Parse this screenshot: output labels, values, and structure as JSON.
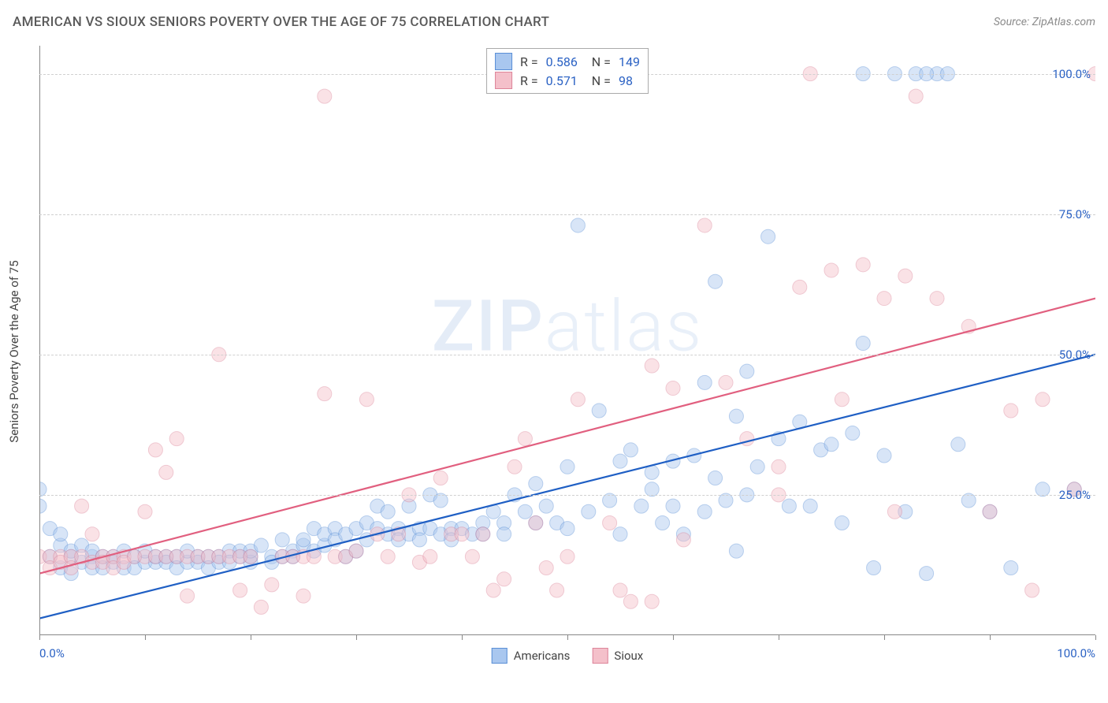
{
  "title": "AMERICAN VS SIOUX SENIORS POVERTY OVER THE AGE OF 75 CORRELATION CHART",
  "source": "Source: ZipAtlas.com",
  "y_axis_label": "Seniors Poverty Over the Age of 75",
  "watermark_a": "ZIP",
  "watermark_b": "atlas",
  "chart": {
    "type": "scatter",
    "background_color": "#ffffff",
    "grid_color": "#d0d0d0",
    "axis_color": "#888888",
    "tick_label_color": "#2b62c4",
    "xlim": [
      0,
      100
    ],
    "ylim": [
      0,
      105
    ],
    "x_ticks": [
      0,
      10,
      20,
      30,
      40,
      50,
      60,
      70,
      80,
      90,
      100
    ],
    "x_tick_labels": {
      "0": "0.0%",
      "100": "100.0%"
    },
    "y_ticks": [
      25,
      50,
      75,
      100
    ],
    "y_tick_labels": {
      "25": "25.0%",
      "50": "50.0%",
      "75": "75.0%",
      "100": "100.0%"
    },
    "marker_radius": 9,
    "marker_opacity": 0.45,
    "line_width": 2.2,
    "series": [
      {
        "name": "Americans",
        "fill": "#a9c7ef",
        "stroke": "#5a8fd6",
        "line_color": "#1f5fc4",
        "R": "0.586",
        "N": "149",
        "trend": {
          "x1": 0,
          "y1": 3,
          "x2": 100,
          "y2": 50
        },
        "points": [
          [
            0,
            26
          ],
          [
            0,
            23
          ],
          [
            1,
            19
          ],
          [
            1,
            14
          ],
          [
            2,
            16
          ],
          [
            2,
            18
          ],
          [
            2,
            12
          ],
          [
            3,
            14
          ],
          [
            3,
            15
          ],
          [
            3,
            11
          ],
          [
            4,
            16
          ],
          [
            4,
            13
          ],
          [
            5,
            14
          ],
          [
            5,
            12
          ],
          [
            5,
            15
          ],
          [
            6,
            14
          ],
          [
            6,
            12
          ],
          [
            7,
            14
          ],
          [
            7,
            13
          ],
          [
            8,
            12
          ],
          [
            8,
            15
          ],
          [
            9,
            14
          ],
          [
            9,
            12
          ],
          [
            10,
            13
          ],
          [
            10,
            15
          ],
          [
            11,
            13
          ],
          [
            11,
            14
          ],
          [
            12,
            14
          ],
          [
            12,
            13
          ],
          [
            13,
            14
          ],
          [
            13,
            12
          ],
          [
            14,
            13
          ],
          [
            14,
            15
          ],
          [
            15,
            14
          ],
          [
            15,
            13
          ],
          [
            16,
            14
          ],
          [
            16,
            12
          ],
          [
            17,
            14
          ],
          [
            17,
            13
          ],
          [
            18,
            15
          ],
          [
            18,
            13
          ],
          [
            19,
            14
          ],
          [
            19,
            15
          ],
          [
            20,
            14
          ],
          [
            20,
            13
          ],
          [
            20,
            15
          ],
          [
            21,
            16
          ],
          [
            22,
            14
          ],
          [
            22,
            13
          ],
          [
            23,
            17
          ],
          [
            23,
            14
          ],
          [
            24,
            15
          ],
          [
            24,
            14
          ],
          [
            25,
            16
          ],
          [
            25,
            17
          ],
          [
            26,
            19
          ],
          [
            26,
            15
          ],
          [
            27,
            16
          ],
          [
            27,
            18
          ],
          [
            28,
            19
          ],
          [
            28,
            17
          ],
          [
            29,
            14
          ],
          [
            29,
            18
          ],
          [
            30,
            19
          ],
          [
            30,
            15
          ],
          [
            31,
            17
          ],
          [
            31,
            20
          ],
          [
            32,
            23
          ],
          [
            32,
            19
          ],
          [
            33,
            18
          ],
          [
            33,
            22
          ],
          [
            34,
            19
          ],
          [
            34,
            17
          ],
          [
            35,
            23
          ],
          [
            35,
            18
          ],
          [
            36,
            19
          ],
          [
            36,
            17
          ],
          [
            37,
            25
          ],
          [
            37,
            19
          ],
          [
            38,
            18
          ],
          [
            38,
            24
          ],
          [
            39,
            19
          ],
          [
            39,
            17
          ],
          [
            40,
            19
          ],
          [
            41,
            18
          ],
          [
            42,
            20
          ],
          [
            42,
            18
          ],
          [
            43,
            22
          ],
          [
            44,
            20
          ],
          [
            44,
            18
          ],
          [
            45,
            25
          ],
          [
            46,
            22
          ],
          [
            47,
            20
          ],
          [
            47,
            27
          ],
          [
            48,
            23
          ],
          [
            49,
            20
          ],
          [
            50,
            30
          ],
          [
            50,
            19
          ],
          [
            51,
            73
          ],
          [
            52,
            22
          ],
          [
            53,
            40
          ],
          [
            54,
            24
          ],
          [
            55,
            31
          ],
          [
            55,
            18
          ],
          [
            56,
            33
          ],
          [
            57,
            23
          ],
          [
            58,
            26
          ],
          [
            58,
            29
          ],
          [
            59,
            20
          ],
          [
            60,
            31
          ],
          [
            60,
            23
          ],
          [
            61,
            18
          ],
          [
            62,
            32
          ],
          [
            63,
            22
          ],
          [
            63,
            45
          ],
          [
            64,
            28
          ],
          [
            64,
            63
          ],
          [
            65,
            24
          ],
          [
            66,
            39
          ],
          [
            66,
            15
          ],
          [
            67,
            25
          ],
          [
            67,
            47
          ],
          [
            68,
            30
          ],
          [
            69,
            71
          ],
          [
            70,
            35
          ],
          [
            71,
            23
          ],
          [
            72,
            38
          ],
          [
            73,
            23
          ],
          [
            74,
            33
          ],
          [
            75,
            34
          ],
          [
            76,
            20
          ],
          [
            77,
            36
          ],
          [
            78,
            52
          ],
          [
            78,
            100
          ],
          [
            79,
            12
          ],
          [
            80,
            32
          ],
          [
            81,
            100
          ],
          [
            82,
            22
          ],
          [
            83,
            100
          ],
          [
            84,
            11
          ],
          [
            85,
            100
          ],
          [
            86,
            100
          ],
          [
            87,
            34
          ],
          [
            88,
            24
          ],
          [
            90,
            22
          ],
          [
            92,
            12
          ],
          [
            95,
            26
          ],
          [
            98,
            26
          ],
          [
            84,
            100
          ]
        ]
      },
      {
        "name": "Sioux",
        "fill": "#f4c0ca",
        "stroke": "#dd8499",
        "line_color": "#e15f7f",
        "R": "0.571",
        "N": "98",
        "trend": {
          "x1": 0,
          "y1": 11,
          "x2": 100,
          "y2": 60
        },
        "points": [
          [
            0,
            14
          ],
          [
            1,
            14
          ],
          [
            1,
            12
          ],
          [
            2,
            14
          ],
          [
            2,
            13
          ],
          [
            3,
            14
          ],
          [
            3,
            12
          ],
          [
            4,
            14
          ],
          [
            4,
            23
          ],
          [
            5,
            18
          ],
          [
            5,
            13
          ],
          [
            6,
            14
          ],
          [
            6,
            13
          ],
          [
            7,
            14
          ],
          [
            7,
            12
          ],
          [
            8,
            14
          ],
          [
            8,
            13
          ],
          [
            9,
            14
          ],
          [
            10,
            14
          ],
          [
            10,
            22
          ],
          [
            11,
            14
          ],
          [
            11,
            33
          ],
          [
            12,
            14
          ],
          [
            12,
            29
          ],
          [
            13,
            14
          ],
          [
            13,
            35
          ],
          [
            14,
            14
          ],
          [
            14,
            7
          ],
          [
            15,
            14
          ],
          [
            16,
            14
          ],
          [
            17,
            14
          ],
          [
            17,
            50
          ],
          [
            18,
            14
          ],
          [
            19,
            14
          ],
          [
            19,
            8
          ],
          [
            20,
            14
          ],
          [
            21,
            5
          ],
          [
            22,
            9
          ],
          [
            23,
            14
          ],
          [
            24,
            14
          ],
          [
            25,
            14
          ],
          [
            25,
            7
          ],
          [
            26,
            14
          ],
          [
            27,
            43
          ],
          [
            27,
            96
          ],
          [
            28,
            14
          ],
          [
            29,
            14
          ],
          [
            30,
            15
          ],
          [
            31,
            42
          ],
          [
            32,
            18
          ],
          [
            33,
            14
          ],
          [
            34,
            18
          ],
          [
            35,
            25
          ],
          [
            36,
            13
          ],
          [
            37,
            14
          ],
          [
            38,
            28
          ],
          [
            39,
            18
          ],
          [
            40,
            18
          ],
          [
            41,
            14
          ],
          [
            42,
            18
          ],
          [
            43,
            8
          ],
          [
            44,
            10
          ],
          [
            45,
            30
          ],
          [
            46,
            35
          ],
          [
            47,
            20
          ],
          [
            48,
            12
          ],
          [
            49,
            8
          ],
          [
            50,
            14
          ],
          [
            51,
            42
          ],
          [
            54,
            20
          ],
          [
            55,
            8
          ],
          [
            56,
            6
          ],
          [
            58,
            48
          ],
          [
            58,
            6
          ],
          [
            60,
            44
          ],
          [
            61,
            17
          ],
          [
            63,
            73
          ],
          [
            65,
            45
          ],
          [
            67,
            35
          ],
          [
            70,
            25
          ],
          [
            70,
            30
          ],
          [
            72,
            62
          ],
          [
            73,
            100
          ],
          [
            75,
            65
          ],
          [
            76,
            42
          ],
          [
            78,
            66
          ],
          [
            80,
            60
          ],
          [
            81,
            22
          ],
          [
            82,
            64
          ],
          [
            83,
            96
          ],
          [
            85,
            60
          ],
          [
            88,
            55
          ],
          [
            90,
            22
          ],
          [
            92,
            40
          ],
          [
            94,
            8
          ],
          [
            95,
            42
          ],
          [
            98,
            26
          ],
          [
            100,
            100
          ]
        ]
      }
    ]
  },
  "legend": {
    "items": [
      {
        "label": "Americans",
        "fill": "#a9c7ef",
        "stroke": "#5a8fd6"
      },
      {
        "label": "Sioux",
        "fill": "#f4c0ca",
        "stroke": "#dd8499"
      }
    ]
  }
}
